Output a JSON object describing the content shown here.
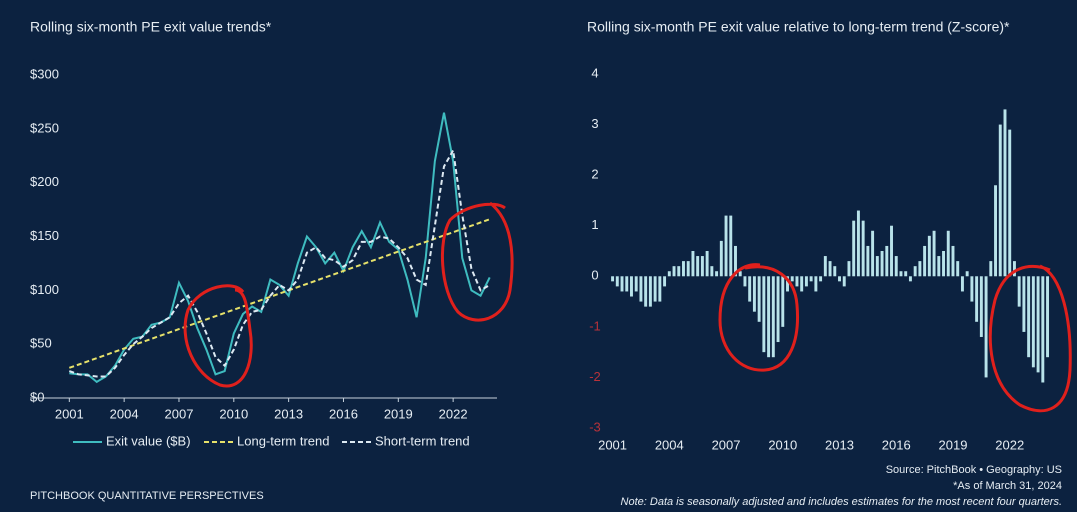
{
  "chart_data": [
    {
      "type": "line",
      "title": "Rolling six-month PE exit value trends*",
      "x": [
        2001,
        2001.5,
        2002,
        2002.5,
        2003,
        2003.5,
        2004,
        2004.5,
        2005,
        2005.5,
        2006,
        2006.5,
        2007,
        2007.5,
        2008,
        2008.5,
        2009,
        2009.5,
        2010,
        2010.5,
        2011,
        2011.5,
        2012,
        2012.5,
        2013,
        2013.5,
        2014,
        2014.5,
        2015,
        2015.5,
        2016,
        2016.5,
        2017,
        2017.5,
        2018,
        2018.5,
        2019,
        2019.5,
        2020,
        2020.5,
        2021,
        2021.5,
        2022,
        2022.5,
        2023,
        2023.5,
        2024
      ],
      "series": [
        {
          "name": "Exit value ($B)",
          "color": "#3fbcc0",
          "dash": false,
          "values": [
            23,
            22,
            22,
            15,
            20,
            30,
            45,
            55,
            57,
            68,
            70,
            75,
            107,
            90,
            65,
            45,
            22,
            25,
            60,
            78,
            85,
            80,
            110,
            105,
            95,
            125,
            150,
            140,
            125,
            135,
            118,
            140,
            155,
            140,
            163,
            145,
            138,
            110,
            75,
            130,
            220,
            265,
            220,
            130,
            100,
            95,
            112
          ]
        },
        {
          "name": "Long-term trend",
          "color": "#e6e16a",
          "dash": true,
          "values": [
            28,
            31,
            34,
            37,
            40,
            43,
            46,
            49,
            52,
            55,
            58,
            61,
            64,
            67,
            70,
            73,
            76,
            79,
            82,
            85,
            88,
            91,
            94,
            97,
            100,
            103,
            106,
            109,
            112,
            115,
            118,
            121,
            124,
            127,
            130,
            133,
            136,
            139,
            142,
            145,
            148,
            151,
            154,
            157,
            160,
            163,
            166
          ]
        },
        {
          "name": "Short-term trend",
          "color": "#dde9f2",
          "dash": true,
          "values": [
            25,
            22,
            21,
            20,
            20,
            28,
            40,
            50,
            57,
            65,
            70,
            75,
            88,
            95,
            80,
            60,
            38,
            30,
            45,
            68,
            80,
            82,
            95,
            105,
            100,
            110,
            135,
            140,
            130,
            128,
            122,
            128,
            145,
            145,
            150,
            148,
            140,
            130,
            110,
            105,
            160,
            215,
            230,
            170,
            120,
            100,
            105
          ]
        }
      ],
      "xlim": [
        2000.6,
        2024.4
      ],
      "xticks": [
        2001,
        2004,
        2007,
        2010,
        2013,
        2016,
        2019,
        2022
      ],
      "ylim": [
        0,
        300
      ],
      "yticks": [
        {
          "value": 0,
          "label": "$0"
        },
        {
          "value": 50,
          "label": "$50"
        },
        {
          "value": 100,
          "label": "$100"
        },
        {
          "value": 150,
          "label": "$150"
        },
        {
          "value": 200,
          "label": "$200"
        },
        {
          "value": 250,
          "label": "$250"
        },
        {
          "value": 300,
          "label": "$300"
        }
      ],
      "legend": "bottom"
    },
    {
      "type": "bar",
      "title": "Rolling six-month PE exit value relative to long-term trend (Z-score)*",
      "x": [
        2001,
        2001.25,
        2001.5,
        2001.75,
        2002,
        2002.25,
        2002.5,
        2002.75,
        2003,
        2003.25,
        2003.5,
        2003.75,
        2004,
        2004.25,
        2004.5,
        2004.75,
        2005,
        2005.25,
        2005.5,
        2005.75,
        2006,
        2006.25,
        2006.5,
        2006.75,
        2007,
        2007.25,
        2007.5,
        2007.75,
        2008,
        2008.25,
        2008.5,
        2008.75,
        2009,
        2009.25,
        2009.5,
        2009.75,
        2010,
        2010.25,
        2010.5,
        2010.75,
        2011,
        2011.25,
        2011.5,
        2011.75,
        2012,
        2012.25,
        2012.5,
        2012.75,
        2013,
        2013.25,
        2013.5,
        2013.75,
        2014,
        2014.25,
        2014.5,
        2014.75,
        2015,
        2015.25,
        2015.5,
        2015.75,
        2016,
        2016.25,
        2016.5,
        2016.75,
        2017,
        2017.25,
        2017.5,
        2017.75,
        2018,
        2018.25,
        2018.5,
        2018.75,
        2019,
        2019.25,
        2019.5,
        2019.75,
        2020,
        2020.25,
        2020.5,
        2020.75,
        2021,
        2021.25,
        2021.5,
        2021.75,
        2022,
        2022.25,
        2022.5,
        2022.75,
        2023,
        2023.25,
        2023.5,
        2023.75,
        2024
      ],
      "values": [
        -0.1,
        -0.2,
        -0.3,
        -0.3,
        -0.4,
        -0.3,
        -0.5,
        -0.6,
        -0.6,
        -0.5,
        -0.5,
        -0.2,
        0.1,
        0.2,
        0.2,
        0.3,
        0.3,
        0.5,
        0.4,
        0.4,
        0.5,
        0.2,
        0.1,
        0.7,
        1.2,
        1.2,
        0.6,
        0.1,
        -0.2,
        -0.5,
        -0.7,
        -0.9,
        -1.5,
        -1.6,
        -1.6,
        -1.3,
        -1.0,
        -0.3,
        -0.1,
        -0.2,
        -0.3,
        -0.2,
        -0.1,
        -0.3,
        -0.1,
        0.4,
        0.3,
        0.2,
        -0.1,
        -0.2,
        0.3,
        1.1,
        1.3,
        1.1,
        0.6,
        0.9,
        0.4,
        0.5,
        0.6,
        1.0,
        0.4,
        0.1,
        0.1,
        -0.1,
        0.2,
        0.3,
        0.6,
        0.8,
        0.9,
        0.4,
        0.5,
        0.9,
        0.6,
        0.3,
        -0.3,
        0.1,
        -0.5,
        -0.9,
        -1.2,
        -2.0,
        0.3,
        1.8,
        3.0,
        3.3,
        2.9,
        0.3,
        -0.6,
        -1.1,
        -1.6,
        -1.8,
        -1.9,
        -2.1,
        -1.6
      ],
      "color": "#b9e3ea",
      "negative_tick_color": "#b8323a",
      "xlim": [
        2000.6,
        2024.5
      ],
      "xticks": [
        2001,
        2004,
        2007,
        2010,
        2013,
        2016,
        2019,
        2022
      ],
      "ylim": [
        -3,
        4
      ],
      "yticks": [
        -3,
        -2,
        -1,
        0,
        1,
        2,
        3,
        4
      ]
    }
  ],
  "footer": {
    "left": "PITCHBOOK QUANTITATIVE PERSPECTIVES",
    "source": "Source: PitchBook  •  Geography: US",
    "asof": "*As of March 31, 2024",
    "note": "Note: Data is seasonally adjusted and includes estimates for the most recent four quarters."
  }
}
